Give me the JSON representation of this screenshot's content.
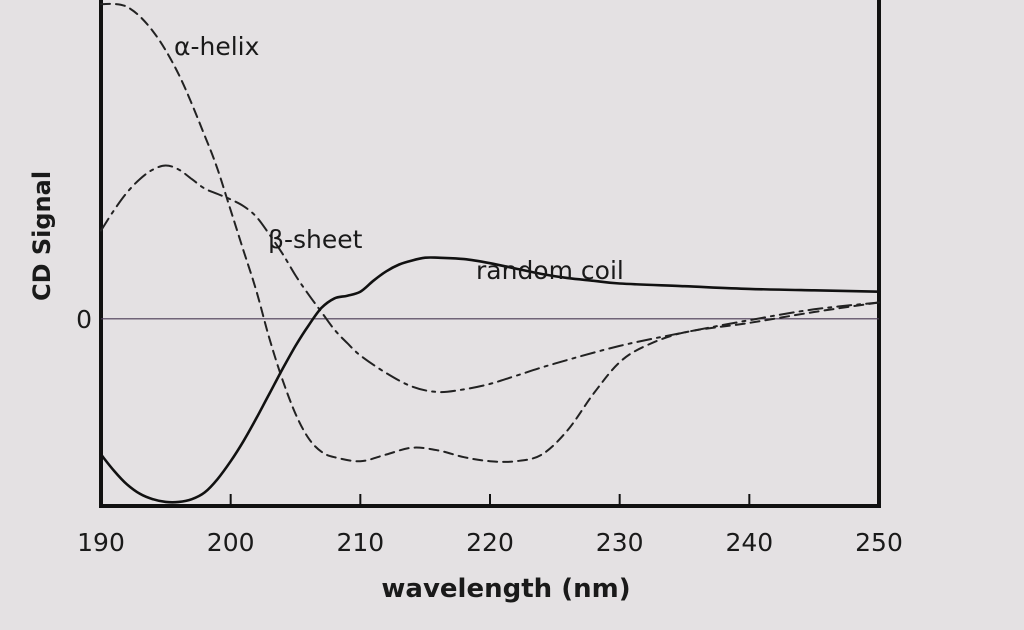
{
  "chart_data": {
    "type": "line",
    "xlabel": "wavelength (nm)",
    "ylabel": "CD Signal",
    "xlim": [
      190,
      250
    ],
    "ylim": [
      -1.38,
      2.35
    ],
    "x_ticks": [
      190,
      200,
      210,
      220,
      230,
      240,
      250
    ],
    "y_ticks": [
      {
        "value": 0,
        "label": "0"
      }
    ],
    "grid": false,
    "series": [
      {
        "name": "α-helix",
        "style": "dashed",
        "color": "#222222",
        "x": [
          190,
          192,
          194,
          196,
          198,
          199,
          200,
          201,
          202,
          203,
          204,
          205,
          206,
          207,
          208,
          210,
          212,
          214,
          216,
          218,
          220,
          222,
          224,
          226,
          228,
          230,
          232,
          235,
          240,
          245,
          250
        ],
        "y": [
          2.32,
          2.3,
          2.12,
          1.8,
          1.35,
          1.1,
          0.8,
          0.5,
          0.2,
          -0.15,
          -0.45,
          -0.7,
          -0.88,
          -0.98,
          -1.02,
          -1.05,
          -1.0,
          -0.95,
          -0.97,
          -1.02,
          -1.05,
          -1.05,
          -1.0,
          -0.82,
          -0.55,
          -0.32,
          -0.2,
          -0.1,
          -0.03,
          0.05,
          0.12
        ]
      },
      {
        "name": "β-sheet",
        "style": "dash-dot",
        "color": "#222222",
        "x": [
          190,
          191,
          192,
          193,
          194,
          195,
          196,
          197,
          198,
          199,
          200,
          201,
          202,
          203,
          204,
          205,
          206,
          207,
          208,
          209,
          210,
          212,
          214,
          216,
          218,
          220,
          222,
          225,
          230,
          235,
          240,
          245,
          250
        ],
        "y": [
          0.65,
          0.8,
          0.93,
          1.03,
          1.1,
          1.13,
          1.1,
          1.03,
          0.96,
          0.92,
          0.88,
          0.83,
          0.75,
          0.62,
          0.48,
          0.32,
          0.18,
          0.05,
          -0.08,
          -0.18,
          -0.27,
          -0.4,
          -0.5,
          -0.54,
          -0.52,
          -0.48,
          -0.42,
          -0.33,
          -0.2,
          -0.1,
          -0.01,
          0.07,
          0.12
        ]
      },
      {
        "name": "random coil",
        "style": "solid",
        "color": "#111111",
        "x": [
          190,
          191,
          192,
          193,
          194,
          195,
          196,
          197,
          198,
          199,
          200,
          201,
          202,
          203,
          204,
          205,
          206,
          207,
          208,
          209,
          210,
          211,
          212,
          213,
          214,
          215,
          216,
          218,
          220,
          222,
          224,
          226,
          228,
          230,
          235,
          240,
          245,
          250
        ],
        "y": [
          -1.0,
          -1.12,
          -1.22,
          -1.29,
          -1.33,
          -1.35,
          -1.35,
          -1.33,
          -1.28,
          -1.18,
          -1.05,
          -0.9,
          -0.73,
          -0.55,
          -0.37,
          -0.2,
          -0.05,
          0.08,
          0.15,
          0.17,
          0.2,
          0.28,
          0.35,
          0.4,
          0.43,
          0.45,
          0.45,
          0.44,
          0.41,
          0.37,
          0.33,
          0.3,
          0.28,
          0.26,
          0.24,
          0.22,
          0.21,
          0.2
        ]
      }
    ]
  }
}
